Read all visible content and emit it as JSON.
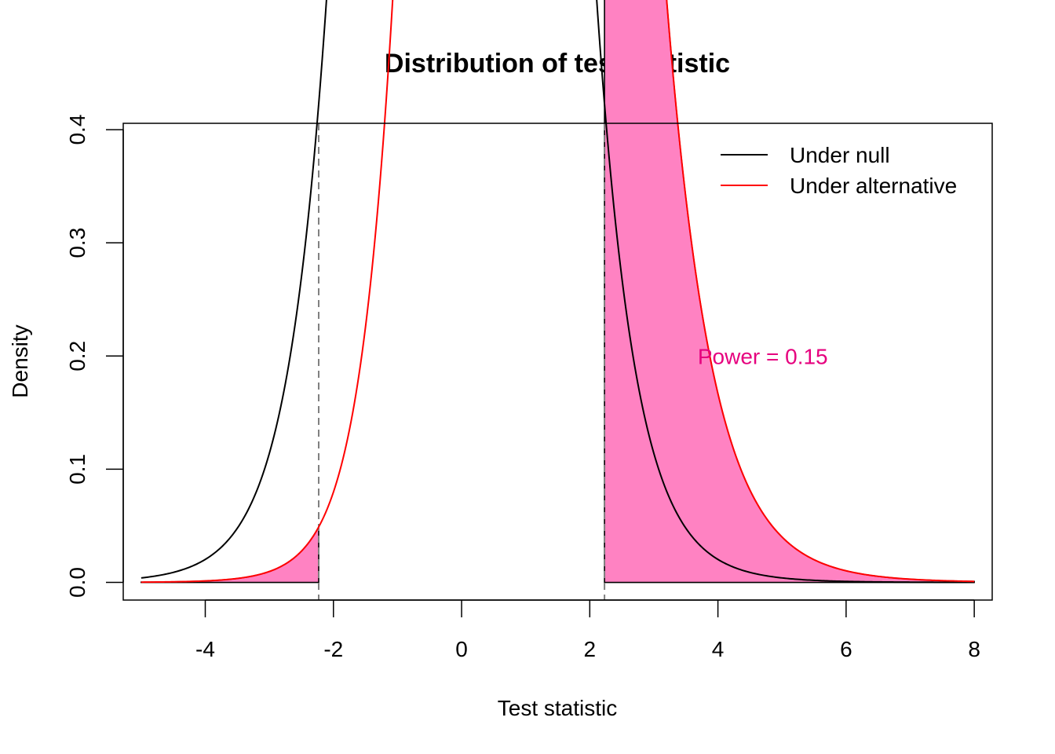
{
  "chart_data": {
    "type": "line",
    "title": "Distribution of test statistic",
    "xlabel": "Test statistic",
    "ylabel": "Density",
    "xlim": [
      -5.28,
      8.28
    ],
    "ylim": [
      -0.0156,
      0.4056
    ],
    "x_range": [
      -5,
      8
    ],
    "x_ticks": [
      -4,
      -2,
      0,
      2,
      4,
      6,
      8
    ],
    "x_tick_labels": [
      "-4",
      "-2",
      "0",
      "2",
      "4",
      "6",
      "8"
    ],
    "y_ticks": [
      0.0,
      0.1,
      0.2,
      0.3,
      0.4
    ],
    "y_tick_labels": [
      "0.0",
      "0.1",
      "0.2",
      "0.3",
      "0.4"
    ],
    "critical_values": [
      -2.23,
      2.23
    ],
    "series": [
      {
        "name": "Under null",
        "color": "#000000",
        "distribution": "t",
        "df": 10,
        "ncp": 0
      },
      {
        "name": "Under alternative",
        "color": "#ff0000",
        "distribution": "noncentral-t",
        "df": 10,
        "ncp": 0.95
      }
    ],
    "shaded_regions": [
      {
        "from": -5,
        "to": -2.23,
        "under": "Under alternative",
        "color": "#ff82c2"
      },
      {
        "from": 2.23,
        "to": 8,
        "under": "Under alternative",
        "color": "#ff82c2"
      }
    ],
    "legend": {
      "position": "top-right",
      "entries": [
        "Under null",
        "Under alternative"
      ]
    },
    "annotation": {
      "text": "Power = 0.15",
      "x": 4.7,
      "y": 0.2,
      "color": "#e6007e"
    }
  }
}
